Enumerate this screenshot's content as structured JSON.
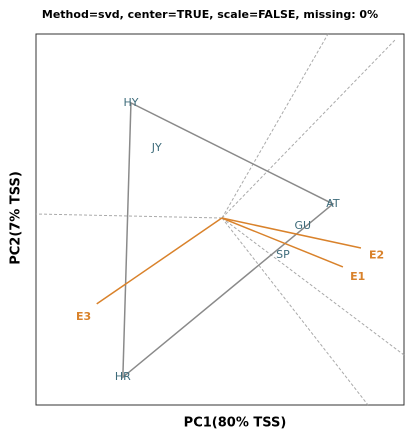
{
  "chart_data": {
    "type": "biplot",
    "title": "Method=svd, center=TRUE, scale=FALSE, missing: 0%",
    "xlabel": "PC1(80% TSS)",
    "ylabel": "PC2(7% TSS)",
    "xlim": [
      -5.05,
      4.95
    ],
    "ylim": [
      -5.05,
      4.97
    ],
    "genotypes": {
      "color": "#3d6b7a",
      "labels": [
        "HY",
        "JY",
        "AT",
        "GU",
        "SP",
        "HR"
      ],
      "x": [
        -2.47,
        -1.77,
        3.02,
        2.2,
        1.66,
        -2.69
      ],
      "y": [
        3.11,
        1.89,
        0.38,
        -0.22,
        -1.0,
        -4.3
      ]
    },
    "polygon": [
      0,
      2,
      5
    ],
    "polygon_color": "#8a8a8a",
    "environments": {
      "color": "#d9822b",
      "labels": [
        "E1",
        "E2",
        "E3"
      ],
      "x": [
        3.29,
        3.78,
        -3.4
      ],
      "y": [
        -1.32,
        -0.81,
        -2.32
      ]
    }
  }
}
